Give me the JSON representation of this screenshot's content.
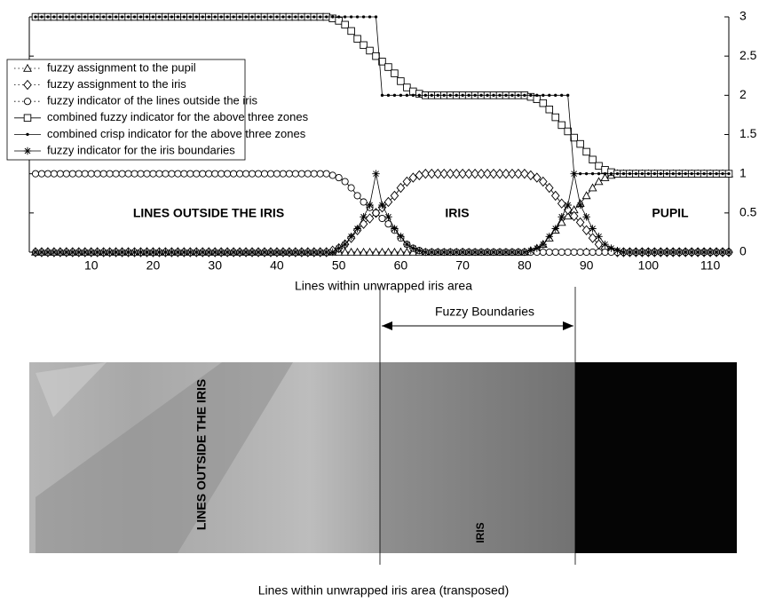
{
  "chart_data": {
    "type": "line",
    "xlabel": "Lines within unwrapped iris area",
    "x": [
      1,
      2,
      3,
      4,
      5,
      6,
      7,
      8,
      9,
      10,
      11,
      12,
      13,
      14,
      15,
      16,
      17,
      18,
      19,
      20,
      21,
      22,
      23,
      24,
      25,
      26,
      27,
      28,
      29,
      30,
      31,
      32,
      33,
      34,
      35,
      36,
      37,
      38,
      39,
      40,
      41,
      42,
      43,
      44,
      45,
      46,
      47,
      48,
      49,
      50,
      51,
      52,
      53,
      54,
      55,
      56,
      57,
      58,
      59,
      60,
      61,
      62,
      63,
      64,
      65,
      66,
      67,
      68,
      69,
      70,
      71,
      72,
      73,
      74,
      75,
      76,
      77,
      78,
      79,
      80,
      81,
      82,
      83,
      84,
      85,
      86,
      87,
      88,
      89,
      90,
      91,
      92,
      93,
      94,
      95,
      96,
      97,
      98,
      99,
      100,
      101,
      102,
      103,
      104,
      105,
      106,
      107,
      108,
      109,
      110,
      111,
      112,
      113
    ],
    "xlim": [
      0,
      113
    ],
    "xticks": [
      10,
      20,
      30,
      40,
      50,
      60,
      70,
      80,
      90,
      100,
      110
    ],
    "ylim": [
      0,
      3
    ],
    "yticks": [
      0,
      0.5,
      1,
      1.5,
      2,
      2.5,
      3
    ],
    "y_axis_side": "right",
    "legend": "upper left",
    "annotations": [
      "LINES OUTSIDE THE IRIS",
      "IRIS",
      "PUPIL"
    ],
    "series": [
      {
        "name": "fuzzy assignment to the pupil",
        "marker": "triangle",
        "color": "#000000",
        "values": [
          0,
          0,
          0,
          0,
          0,
          0,
          0,
          0,
          0,
          0,
          0,
          0,
          0,
          0,
          0,
          0,
          0,
          0,
          0,
          0,
          0,
          0,
          0,
          0,
          0,
          0,
          0,
          0,
          0,
          0,
          0,
          0,
          0,
          0,
          0,
          0,
          0,
          0,
          0,
          0,
          0,
          0,
          0,
          0,
          0,
          0,
          0,
          0,
          0,
          0,
          0,
          0,
          0,
          0,
          0,
          0,
          0,
          0,
          0,
          0,
          0,
          0,
          0,
          0,
          0,
          0,
          0,
          0,
          0,
          0,
          0,
          0,
          0,
          0,
          0,
          0,
          0,
          0,
          0,
          0,
          0.02,
          0.05,
          0.1,
          0.18,
          0.28,
          0.38,
          0.46,
          0.54,
          0.62,
          0.72,
          0.82,
          0.9,
          0.95,
          0.98,
          1,
          1,
          1,
          1,
          1,
          1,
          1,
          1,
          1,
          1,
          1,
          1,
          1,
          1,
          1,
          1,
          1,
          1,
          1
        ]
      },
      {
        "name": "fuzzy assignment to the iris",
        "marker": "diamond",
        "color": "#000000",
        "values": [
          0,
          0,
          0,
          0,
          0,
          0,
          0,
          0,
          0,
          0,
          0,
          0,
          0,
          0,
          0,
          0,
          0,
          0,
          0,
          0,
          0,
          0,
          0,
          0,
          0,
          0,
          0,
          0,
          0,
          0,
          0,
          0,
          0,
          0,
          0,
          0,
          0,
          0,
          0,
          0,
          0,
          0,
          0,
          0,
          0,
          0,
          0,
          0,
          0.02,
          0.05,
          0.1,
          0.18,
          0.28,
          0.36,
          0.43,
          0.5,
          0.57,
          0.64,
          0.72,
          0.82,
          0.9,
          0.95,
          0.98,
          1,
          1,
          1,
          1,
          1,
          1,
          1,
          1,
          1,
          1,
          1,
          1,
          1,
          1,
          1,
          1,
          1,
          0.98,
          0.95,
          0.9,
          0.82,
          0.72,
          0.62,
          0.54,
          0.46,
          0.38,
          0.28,
          0.18,
          0.1,
          0.05,
          0.02,
          0,
          0,
          0,
          0,
          0,
          0,
          0,
          0,
          0,
          0,
          0,
          0,
          0,
          0,
          0,
          0,
          0,
          0,
          0
        ]
      },
      {
        "name": "fuzzy indicator of the lines outside the iris",
        "marker": "circle",
        "color": "#000000",
        "values": [
          1,
          1,
          1,
          1,
          1,
          1,
          1,
          1,
          1,
          1,
          1,
          1,
          1,
          1,
          1,
          1,
          1,
          1,
          1,
          1,
          1,
          1,
          1,
          1,
          1,
          1,
          1,
          1,
          1,
          1,
          1,
          1,
          1,
          1,
          1,
          1,
          1,
          1,
          1,
          1,
          1,
          1,
          1,
          1,
          1,
          1,
          1,
          1,
          0.98,
          0.95,
          0.9,
          0.82,
          0.72,
          0.64,
          0.57,
          0.5,
          0.43,
          0.36,
          0.28,
          0.18,
          0.1,
          0.05,
          0.02,
          0,
          0,
          0,
          0,
          0,
          0,
          0,
          0,
          0,
          0,
          0,
          0,
          0,
          0,
          0,
          0,
          0,
          0,
          0,
          0,
          0,
          0,
          0,
          0,
          0,
          0,
          0,
          0,
          0,
          0,
          0,
          0,
          0,
          0,
          0,
          0,
          0,
          0,
          0,
          0,
          0,
          0,
          0,
          0,
          0,
          0,
          0,
          0,
          0,
          0
        ]
      },
      {
        "name": "combined fuzzy indicator for the above three zones",
        "marker": "square",
        "color": "#000000",
        "values": [
          3,
          3,
          3,
          3,
          3,
          3,
          3,
          3,
          3,
          3,
          3,
          3,
          3,
          3,
          3,
          3,
          3,
          3,
          3,
          3,
          3,
          3,
          3,
          3,
          3,
          3,
          3,
          3,
          3,
          3,
          3,
          3,
          3,
          3,
          3,
          3,
          3,
          3,
          3,
          3,
          3,
          3,
          3,
          3,
          3,
          3,
          3,
          3,
          2.98,
          2.95,
          2.9,
          2.82,
          2.72,
          2.64,
          2.57,
          2.5,
          2.43,
          2.36,
          2.28,
          2.18,
          2.1,
          2.05,
          2.02,
          2,
          2,
          2,
          2,
          2,
          2,
          2,
          2,
          2,
          2,
          2,
          2,
          2,
          2,
          2,
          2,
          2,
          1.98,
          1.95,
          1.9,
          1.82,
          1.72,
          1.62,
          1.54,
          1.46,
          1.38,
          1.28,
          1.18,
          1.1,
          1.05,
          1.02,
          1,
          1,
          1,
          1,
          1,
          1,
          1,
          1,
          1,
          1,
          1,
          1,
          1,
          1,
          1,
          1,
          1,
          1,
          1
        ]
      },
      {
        "name": "combined crisp indicator for the above three zones",
        "marker": "dot",
        "color": "#000000",
        "values": [
          3,
          3,
          3,
          3,
          3,
          3,
          3,
          3,
          3,
          3,
          3,
          3,
          3,
          3,
          3,
          3,
          3,
          3,
          3,
          3,
          3,
          3,
          3,
          3,
          3,
          3,
          3,
          3,
          3,
          3,
          3,
          3,
          3,
          3,
          3,
          3,
          3,
          3,
          3,
          3,
          3,
          3,
          3,
          3,
          3,
          3,
          3,
          3,
          3,
          3,
          3,
          3,
          3,
          3,
          3,
          3,
          2,
          2,
          2,
          2,
          2,
          2,
          2,
          2,
          2,
          2,
          2,
          2,
          2,
          2,
          2,
          2,
          2,
          2,
          2,
          2,
          2,
          2,
          2,
          2,
          2,
          2,
          2,
          2,
          2,
          2,
          2,
          1,
          1,
          1,
          1,
          1,
          1,
          1,
          1,
          1,
          1,
          1,
          1,
          1,
          1,
          1,
          1,
          1,
          1,
          1,
          1,
          1,
          1,
          1,
          1,
          1,
          1
        ]
      },
      {
        "name": "fuzzy indicator for the iris boundaries",
        "marker": "star",
        "color": "#000000",
        "values": [
          0,
          0,
          0,
          0,
          0,
          0,
          0,
          0,
          0,
          0,
          0,
          0,
          0,
          0,
          0,
          0,
          0,
          0,
          0,
          0,
          0,
          0,
          0,
          0,
          0,
          0,
          0,
          0,
          0,
          0,
          0,
          0,
          0,
          0,
          0,
          0,
          0,
          0,
          0,
          0,
          0,
          0,
          0,
          0,
          0,
          0,
          0,
          0,
          0,
          0.05,
          0.1,
          0.2,
          0.3,
          0.45,
          0.6,
          1,
          0.6,
          0.45,
          0.3,
          0.2,
          0.1,
          0.05,
          0.02,
          0,
          0,
          0,
          0,
          0,
          0,
          0,
          0,
          0,
          0,
          0,
          0,
          0,
          0,
          0,
          0,
          0,
          0.02,
          0.05,
          0.1,
          0.2,
          0.3,
          0.45,
          0.6,
          1,
          0.6,
          0.45,
          0.3,
          0.2,
          0.1,
          0.05,
          0.02,
          0,
          0,
          0,
          0,
          0,
          0,
          0,
          0,
          0,
          0,
          0,
          0,
          0,
          0,
          0,
          0,
          0,
          0
        ]
      }
    ]
  },
  "figure": {
    "fuzzy_boundaries_label": "Fuzzy Boundaries",
    "image_labels": [
      "LINES OUTSIDE THE IRIS",
      "IRIS"
    ],
    "image_xlabel": "Lines within unwrapped iris area (transposed)"
  }
}
